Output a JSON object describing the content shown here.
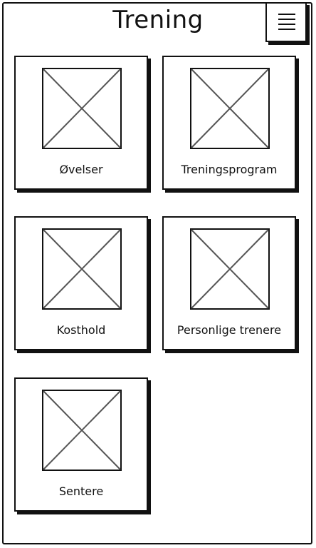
{
  "header": {
    "title": "Trening",
    "menu_icon": "hamburger-menu-icon"
  },
  "tiles": [
    {
      "label": "Øvelser",
      "icon": "image-placeholder-icon"
    },
    {
      "label": "Treningsprogram",
      "icon": "image-placeholder-icon"
    },
    {
      "label": "Kosthold",
      "icon": "image-placeholder-icon"
    },
    {
      "label": "Personlige trenere",
      "icon": "image-placeholder-icon"
    },
    {
      "label": "Sentere",
      "icon": "image-placeholder-icon"
    }
  ],
  "colors": {
    "ink": "#111111",
    "background": "#ffffff",
    "placeholder_stroke": "#555555"
  }
}
